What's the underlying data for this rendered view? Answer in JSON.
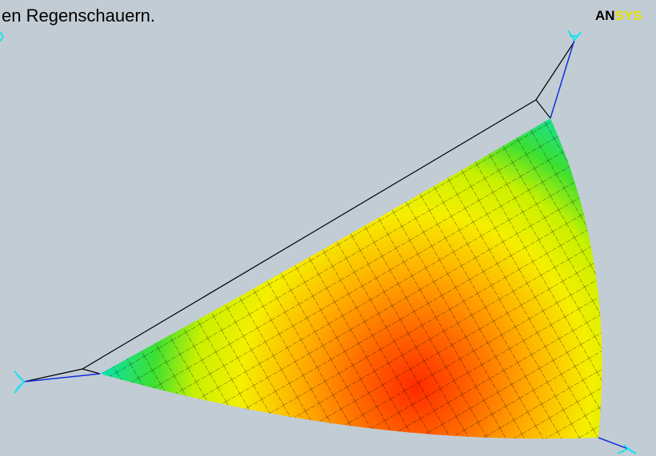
{
  "caption": "en Regenschauern.",
  "logo": {
    "first": "AN",
    "second": "SYS"
  }
}
